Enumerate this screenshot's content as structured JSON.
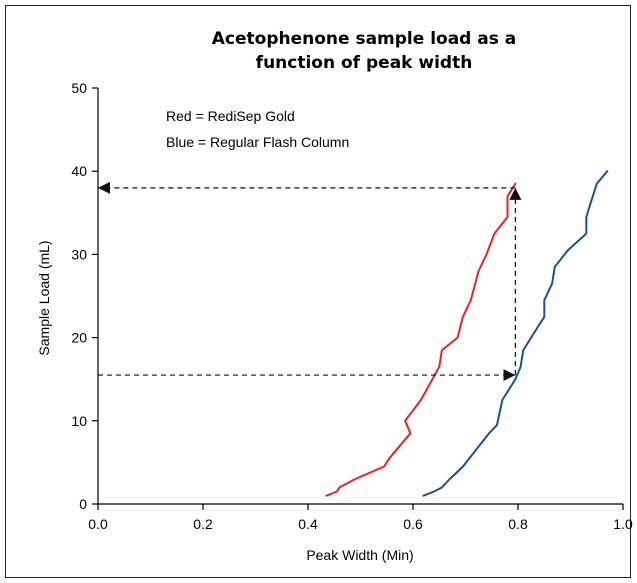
{
  "chart_data": {
    "type": "line",
    "title": [
      "Acetophenone sample load as a",
      "function of peak width"
    ],
    "xlabel": "Peak Width (Min)",
    "ylabel": "Sample Load (mL)",
    "xlim": [
      0.0,
      1.0
    ],
    "ylim": [
      0,
      50
    ],
    "x_ticks": [
      "0.0",
      "0.2",
      "0.4",
      "0.6",
      "0.8",
      "1.0"
    ],
    "y_ticks": [
      "0",
      "10",
      "20",
      "30",
      "40",
      "50"
    ],
    "legend_lines": [
      "Red = RediSep Gold",
      "Blue = Regular Flash Column"
    ],
    "grid": false,
    "series": [
      {
        "color": "#e8232b",
        "points": [
          [
            0.435,
            1.0
          ],
          [
            0.455,
            1.5
          ],
          [
            0.46,
            2.0
          ],
          [
            0.49,
            3.0
          ],
          [
            0.545,
            4.5
          ],
          [
            0.555,
            5.5
          ],
          [
            0.595,
            8.5
          ],
          [
            0.585,
            10.0
          ],
          [
            0.615,
            12.5
          ],
          [
            0.65,
            16.5
          ],
          [
            0.655,
            18.5
          ],
          [
            0.685,
            20.0
          ],
          [
            0.695,
            22.5
          ],
          [
            0.71,
            24.5
          ],
          [
            0.725,
            28.0
          ],
          [
            0.74,
            30.0
          ],
          [
            0.755,
            32.5
          ],
          [
            0.78,
            34.5
          ],
          [
            0.78,
            37.0
          ],
          [
            0.795,
            38.5
          ]
        ]
      },
      {
        "color": "#1a4fa0",
        "points": [
          [
            0.62,
            1.0
          ],
          [
            0.64,
            1.5
          ],
          [
            0.655,
            2.0
          ],
          [
            0.67,
            3.0
          ],
          [
            0.695,
            4.5
          ],
          [
            0.72,
            6.5
          ],
          [
            0.745,
            8.5
          ],
          [
            0.76,
            9.5
          ],
          [
            0.77,
            12.5
          ],
          [
            0.795,
            15.0
          ],
          [
            0.805,
            16.5
          ],
          [
            0.81,
            18.5
          ],
          [
            0.825,
            20.0
          ],
          [
            0.84,
            21.5
          ],
          [
            0.85,
            22.5
          ],
          [
            0.85,
            24.5
          ],
          [
            0.865,
            26.5
          ],
          [
            0.87,
            28.5
          ],
          [
            0.895,
            30.5
          ],
          [
            0.93,
            32.5
          ],
          [
            0.93,
            34.5
          ],
          [
            0.94,
            36.5
          ],
          [
            0.95,
            38.5
          ],
          [
            0.97,
            40.0
          ]
        ]
      }
    ],
    "annotations": [
      {
        "type": "dashed-arrow",
        "color": "#111111",
        "from": [
          0.795,
          38.0
        ],
        "to": [
          0.0,
          38.0
        ]
      },
      {
        "type": "dashed-arrow",
        "color": "#111111",
        "from": [
          0.795,
          15.5
        ],
        "to": [
          0.795,
          38.0
        ]
      },
      {
        "type": "dashed-arrow",
        "color": "#111111",
        "from": [
          0.0,
          15.5
        ],
        "to": [
          0.795,
          15.5
        ]
      }
    ]
  }
}
